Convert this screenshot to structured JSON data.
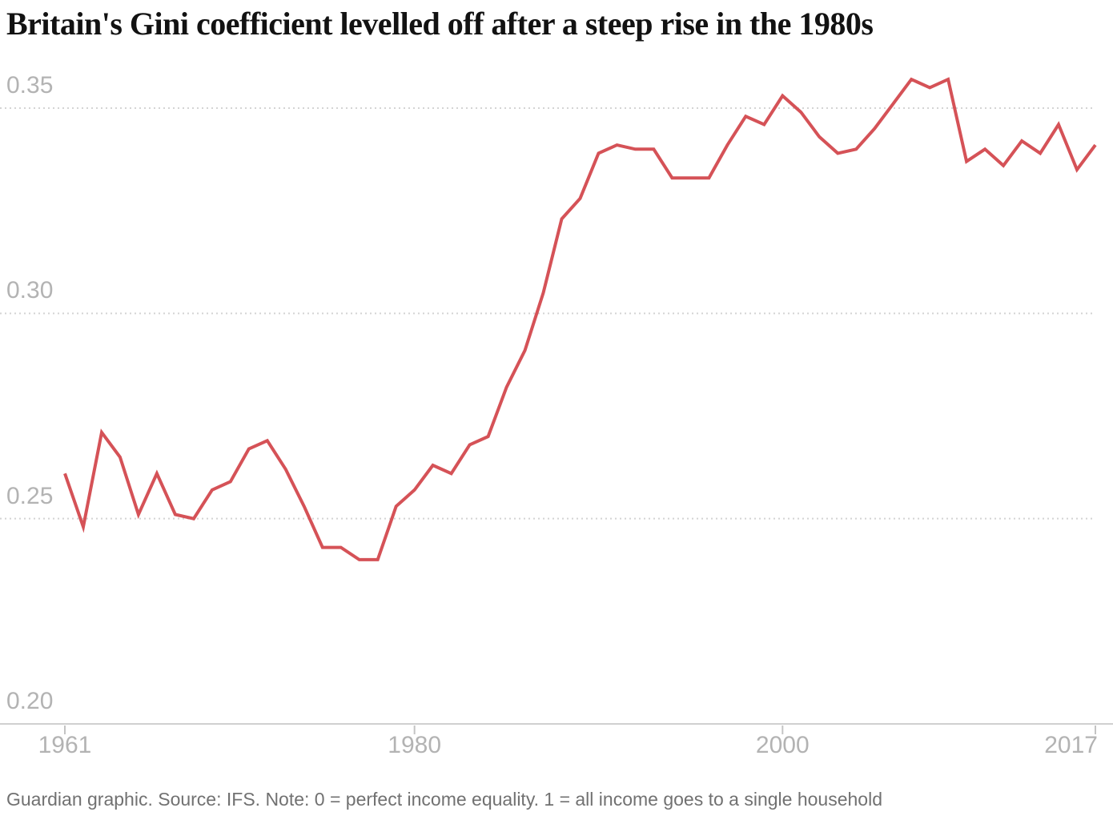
{
  "title": "Britain's Gini coefficient levelled off after a steep rise in the 1980s",
  "footer": "Guardian graphic. Source: IFS. Note: 0 = perfect income equality. 1 = all income goes to a single household",
  "colors": {
    "background": "#ffffff",
    "title": "#121212",
    "line": "#d55257",
    "gridline": "#d4d4d4",
    "axis_line": "#d0d0d0",
    "tick": "#c4c4c4",
    "axis_label": "#b3b3b3",
    "footer": "#717171"
  },
  "chart_data": {
    "type": "line",
    "title": "Britain's Gini coefficient levelled off after a steep rise in the 1980s",
    "xlabel": "",
    "ylabel": "Gini coefficient",
    "x": [
      1961,
      1962,
      1963,
      1964,
      1965,
      1966,
      1967,
      1968,
      1969,
      1970,
      1971,
      1972,
      1973,
      1974,
      1975,
      1976,
      1977,
      1978,
      1979,
      1980,
      1981,
      1982,
      1983,
      1984,
      1985,
      1986,
      1987,
      1988,
      1989,
      1990,
      1991,
      1992,
      1993,
      1994,
      1995,
      1996,
      1997,
      1998,
      1999,
      2000,
      2001,
      2002,
      2003,
      2004,
      2005,
      2006,
      2007,
      2008,
      2009,
      2010,
      2011,
      2012,
      2013,
      2014,
      2015,
      2016,
      2017
    ],
    "series": [
      {
        "name": "Gini coefficient",
        "values": [
          0.261,
          0.248,
          0.271,
          0.265,
          0.251,
          0.261,
          0.251,
          0.25,
          0.257,
          0.259,
          0.267,
          0.269,
          0.262,
          0.253,
          0.243,
          0.243,
          0.24,
          0.24,
          0.253,
          0.257,
          0.263,
          0.261,
          0.268,
          0.27,
          0.282,
          0.291,
          0.305,
          0.323,
          0.328,
          0.339,
          0.341,
          0.34,
          0.34,
          0.333,
          0.333,
          0.333,
          0.341,
          0.348,
          0.346,
          0.353,
          0.349,
          0.343,
          0.339,
          0.34,
          0.345,
          0.351,
          0.357,
          0.355,
          0.357,
          0.337,
          0.34,
          0.336,
          0.342,
          0.339,
          0.346,
          0.335,
          0.341
        ]
      }
    ],
    "xlim": [
      1961,
      2017
    ],
    "ylim": [
      0.2,
      0.36
    ],
    "yticks": [
      0.2,
      0.25,
      0.3,
      0.35
    ],
    "ytick_labels": [
      "0.20",
      "0.25",
      "0.30",
      "0.35"
    ],
    "xticks": [
      1961,
      1980,
      2000,
      2017
    ],
    "xtick_labels": [
      "1961",
      "1980",
      "2000",
      "2017"
    ],
    "grid": "horizontal dotted, solid baseline at bottom",
    "legend": "none"
  }
}
